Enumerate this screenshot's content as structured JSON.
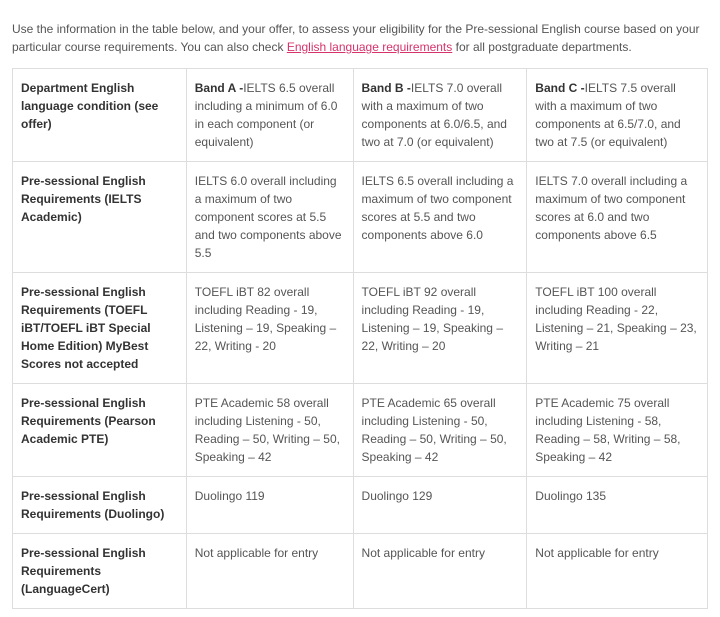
{
  "intro": {
    "part1": "Use the information in the table below, and your offer, to assess your eligibility for the Pre-sessional English course based on your particular course requirements. You can also check ",
    "link_text": "English language requirements",
    "part2": " for all postgraduate departments."
  },
  "table": {
    "row_headers": [
      "Department English language condition (see offer)",
      "Pre-sessional English Requirements (IELTS Academic)",
      "Pre-sessional English Requirements (TOEFL iBT/TOEFL iBT Special Home Edition) MyBest Scores not accepted",
      "Pre-sessional English Requirements (Pearson Academic PTE)",
      "Pre-sessional English Requirements (Duolingo)",
      "Pre-sessional English Requirements (LanguageCert)"
    ],
    "bands": {
      "a": {
        "label": "Band A -",
        "desc": "IELTS 6.5 overall including a minimum of 6.0 in each component (or equivalent)"
      },
      "b": {
        "label": "Band B -",
        "desc": "IELTS 7.0 overall with a maximum of two components at 6.0/6.5, and two at 7.0 (or equivalent)"
      },
      "c": {
        "label": "Band C -",
        "desc": "IELTS 7.5 overall with a maximum of two components at 6.5/7.0, and two at 7.5 (or equivalent)"
      }
    },
    "rows": [
      {
        "a": "IELTS 6.0 overall including a maximum of two component scores at 5.5 and two components above 5.5",
        "b": "IELTS 6.5 overall including a maximum of two component scores at 5.5 and two components above 6.0",
        "c": "IELTS 7.0 overall including a maximum of two component scores at 6.0 and two components above 6.5"
      },
      {
        "a": "TOEFL iBT 82 overall including Reading - 19, Listening – 19, Speaking – 22, Writing - 20",
        "b": "TOEFL iBT 92 overall including Reading - 19, Listening – 19, Speaking – 22, Writing – 20",
        "c": "TOEFL iBT 100 overall including Reading - 22, Listening – 21, Speaking – 23, Writing – 21"
      },
      {
        "a": "PTE Academic 58 overall including Listening - 50, Reading – 50, Writing – 50, Speaking – 42",
        "b": "PTE Academic 65 overall including Listening - 50, Reading – 50, Writing – 50, Speaking – 42",
        "c": "PTE Academic 75 overall including Listening - 58, Reading – 58, Writing – 58, Speaking – 42"
      },
      {
        "a": "Duolingo 119",
        "b": "Duolingo 129",
        "c": "Duolingo 135"
      },
      {
        "a": "Not applicable for entry",
        "b": "Not applicable for entry",
        "c": "Not applicable for entry"
      }
    ]
  },
  "style": {
    "text_color": "#555555",
    "header_text_color": "#333333",
    "link_color": "#d6336c",
    "border_color": "#dddddd",
    "background_color": "#ffffff",
    "font_family": "Arial, Helvetica, sans-serif",
    "font_size_pt": 9
  }
}
